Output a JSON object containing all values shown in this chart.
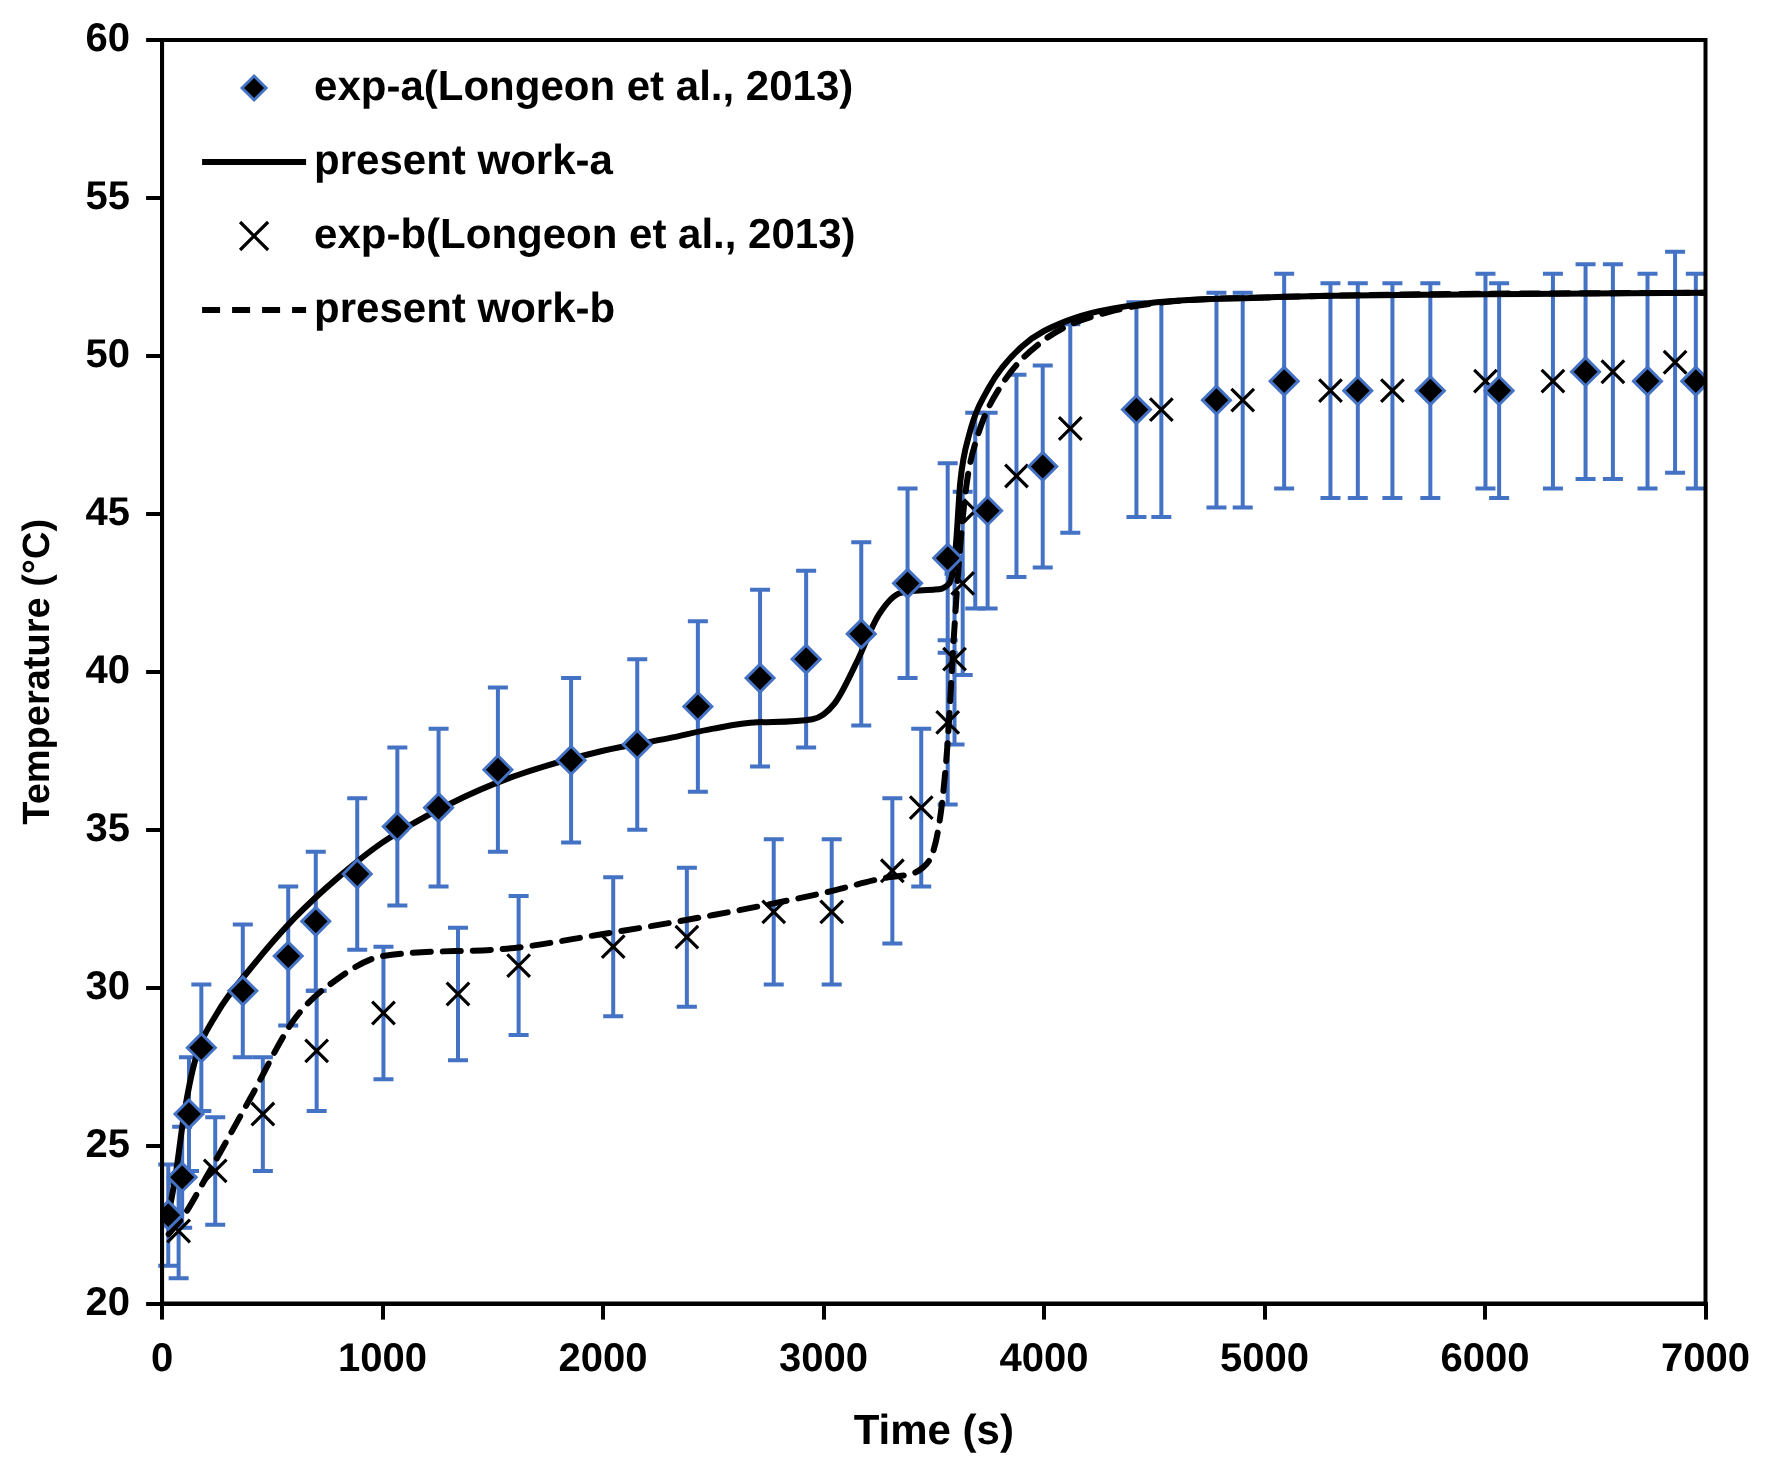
{
  "chart_data": {
    "type": "scatter",
    "xlabel": "Time (s)",
    "ylabel": "Temperature (°C)",
    "xlim": [
      0,
      7000
    ],
    "xticks": [
      0,
      1000,
      2000,
      3000,
      4000,
      5000,
      6000,
      7000
    ],
    "ylim": [
      20,
      60
    ],
    "yticks": [
      20,
      25,
      30,
      35,
      40,
      45,
      50,
      55,
      60
    ],
    "legend": "top left",
    "series": [
      {
        "name": "exp-a(Longeon et al., 2013)",
        "marker": "diamond",
        "color": "#000000",
        "x": [
          28,
          91,
          122,
          178,
          366,
          572,
          697,
          885,
          1067,
          1254,
          1523,
          1855,
          2155,
          2430,
          2712,
          2921,
          3171,
          3381,
          3563,
          3744,
          3994,
          4419,
          4782,
          5089,
          5423,
          5752,
          6064,
          6456,
          6737,
          6956
        ],
        "values": [
          22.8,
          24.0,
          26.0,
          28.1,
          29.9,
          31.0,
          32.1,
          33.6,
          35.1,
          35.7,
          36.9,
          37.2,
          37.7,
          38.9,
          39.8,
          40.4,
          41.2,
          42.8,
          43.6,
          45.1,
          46.5,
          48.3,
          48.6,
          49.2,
          48.9,
          48.9,
          48.9,
          49.5,
          49.2,
          49.2
        ],
        "errors": [
          1.6,
          1.6,
          1.8,
          2.0,
          2.1,
          2.2,
          2.2,
          2.4,
          2.5,
          2.5,
          2.6,
          2.6,
          2.7,
          2.7,
          2.8,
          2.8,
          2.9,
          3.0,
          3.0,
          3.1,
          3.2,
          3.4,
          3.4,
          3.4,
          3.4,
          3.4,
          3.4,
          3.4,
          3.4,
          3.4
        ]
      },
      {
        "name": "present work-a",
        "type": "line",
        "marker": "none",
        "line_style": "solid",
        "color": "#000000",
        "x": [
          20,
          60,
          100,
          150,
          250,
          400,
          600,
          800,
          1000,
          1300,
          1600,
          2000,
          2300,
          2500,
          2700,
          2950,
          3050,
          3150,
          3250,
          3350,
          3500,
          3570,
          3600,
          3620,
          3660,
          3750,
          3900,
          4100,
          4400,
          5000,
          6000,
          7000
        ],
        "values": [
          22.5,
          24.0,
          26.0,
          27.7,
          29.2,
          30.6,
          32.2,
          33.5,
          34.6,
          35.8,
          36.7,
          37.5,
          37.9,
          38.2,
          38.4,
          38.5,
          39.0,
          40.3,
          41.8,
          42.5,
          42.6,
          42.8,
          44.0,
          46.0,
          47.5,
          49.0,
          50.3,
          51.1,
          51.6,
          51.85,
          51.95,
          52.0
        ]
      },
      {
        "name": "exp-b(Longeon et al., 2013)",
        "marker": "cross",
        "color": "#000000",
        "x": [
          75,
          241,
          457,
          701,
          1004,
          1342,
          1617,
          2046,
          2380,
          2774,
          3037,
          3312,
          3443,
          3563,
          3594,
          3631,
          3688,
          3875,
          4119,
          4532,
          4901,
          5299,
          5580,
          6002,
          6308,
          6580,
          6862
        ],
        "values": [
          22.3,
          24.2,
          26.0,
          28.0,
          29.2,
          29.8,
          30.7,
          31.3,
          31.6,
          32.4,
          32.4,
          33.7,
          35.7,
          38.4,
          40.4,
          42.8,
          45.1,
          46.2,
          47.7,
          48.3,
          48.6,
          48.9,
          48.9,
          49.2,
          49.2,
          49.5,
          49.8
        ],
        "errors": [
          1.5,
          1.7,
          1.8,
          1.9,
          2.1,
          2.1,
          2.2,
          2.2,
          2.2,
          2.3,
          2.3,
          2.3,
          2.5,
          2.6,
          2.7,
          2.9,
          3.1,
          3.2,
          3.3,
          3.4,
          3.4,
          3.4,
          3.4,
          3.4,
          3.4,
          3.4,
          3.5
        ]
      },
      {
        "name": "present work-b",
        "type": "line",
        "marker": "none",
        "line_style": "dashed",
        "color": "#000000",
        "x": [
          30,
          100,
          200,
          400,
          600,
          800,
          1000,
          1500,
          2000,
          2500,
          3000,
          3300,
          3450,
          3520,
          3560,
          3590,
          3620,
          3650,
          3700,
          3800,
          4000,
          4300,
          5000,
          7000
        ],
        "values": [
          22.2,
          22.8,
          24.0,
          26.5,
          29.0,
          30.3,
          31.0,
          31.2,
          31.7,
          32.3,
          33.0,
          33.5,
          33.8,
          35.0,
          37.5,
          41.0,
          44.0,
          46.0,
          47.5,
          49.0,
          50.5,
          51.4,
          51.85,
          52.0
        ]
      }
    ]
  }
}
